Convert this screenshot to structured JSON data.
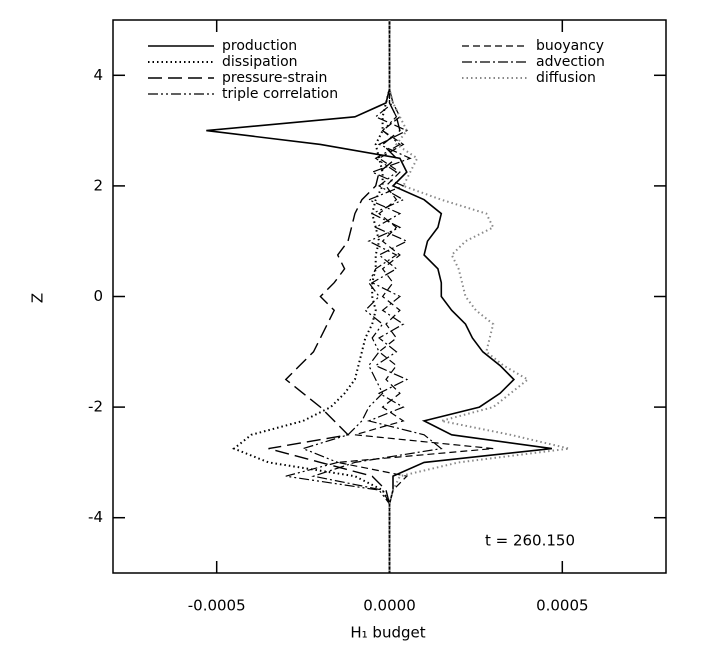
{
  "chart_data": {
    "type": "line",
    "orientation": "vertical-profile",
    "xlabel": "H₁ budget",
    "ylabel": "Z",
    "annotation": "t = 260.150",
    "xlim": [
      -0.0008,
      0.0008
    ],
    "xticks": [
      -0.0005,
      {
        "value": 0,
        "label": "0.0000"
      },
      0.0005
    ],
    "ylim": [
      -5,
      5
    ],
    "yticks": [
      -4,
      -2,
      0,
      2,
      4
    ],
    "y": [
      5,
      4,
      3.75,
      3.5,
      3.25,
      3,
      2.75,
      2.5,
      2.25,
      2,
      1.75,
      1.5,
      1.25,
      1,
      0.75,
      0.5,
      0.25,
      0,
      -0.25,
      -0.5,
      -0.75,
      -1,
      -1.25,
      -1.5,
      -1.75,
      -2,
      -2.25,
      -2.5,
      -2.75,
      -3,
      -3.25,
      -3.5,
      -3.75,
      -4,
      -5
    ],
    "series": [
      {
        "name": "production",
        "color": "#000000",
        "dash": "solid",
        "legend_column": 0,
        "values": [
          0,
          0,
          0,
          -1e-05,
          -0.0001,
          -0.00053,
          -0.0002,
          3e-05,
          5e-05,
          1e-05,
          0.0001,
          0.00015,
          0.00014,
          0.00011,
          0.0001,
          0.00014,
          0.00015,
          0.00015,
          0.00018,
          0.00022,
          0.00024,
          0.00027,
          0.00032,
          0.00036,
          0.00032,
          0.00026,
          0.0001,
          0.00018,
          0.00047,
          0.0001,
          1e-05,
          1e-05,
          0,
          0,
          0
        ]
      },
      {
        "name": "dissipation",
        "color": "#000000",
        "dash": "dotted",
        "legend_column": 0,
        "values": [
          0,
          0,
          0,
          -1e-05,
          -2e-05,
          -2e-05,
          -4e-05,
          -3e-05,
          -2e-05,
          -2e-05,
          -4e-05,
          -5e-05,
          -4e-05,
          -3e-05,
          -4e-05,
          -4e-05,
          -5e-05,
          -5e-05,
          -4e-05,
          -5e-05,
          -7e-05,
          -8e-05,
          -9e-05,
          -0.0001,
          -0.00013,
          -0.00017,
          -0.00025,
          -0.0004,
          -0.00045,
          -0.00035,
          -0.0001,
          -2e-05,
          0,
          0,
          0
        ]
      },
      {
        "name": "pressure-strain",
        "color": "#000000",
        "dash": "long",
        "legend_column": 0,
        "values": [
          0,
          0,
          0,
          0,
          2e-05,
          3e-05,
          -2e-05,
          2e-05,
          -3e-05,
          -4e-05,
          -8e-05,
          -0.0001,
          -0.00011,
          -0.00012,
          -0.00015,
          -0.00013,
          -0.00016,
          -0.0002,
          -0.00016,
          -0.00018,
          -0.0002,
          -0.00022,
          -0.00026,
          -0.0003,
          -0.00025,
          -0.0002,
          -0.00016,
          -0.00012,
          -0.00035,
          -0.0002,
          -5e-05,
          -1e-05,
          0,
          0,
          0
        ]
      },
      {
        "name": "triple correlation",
        "color": "#000000",
        "dash": "dashdotdot",
        "legend_column": 0,
        "values": [
          0,
          0,
          0,
          0,
          2e-05,
          -2e-05,
          3e-05,
          -4e-05,
          2e-05,
          -3e-05,
          4e-05,
          -5e-05,
          3e-05,
          -6e-05,
          2e-05,
          -4e-05,
          -6e-05,
          -3e-05,
          -7e-05,
          -2e-05,
          -5e-05,
          -3e-05,
          -6e-05,
          -4e-05,
          -2e-05,
          -6e-05,
          -8e-05,
          -0.00012,
          -0.00025,
          -0.00015,
          -0.0003,
          -3e-05,
          0,
          0,
          0
        ]
      },
      {
        "name": "buoyancy",
        "color": "#000000",
        "dash": "dashed",
        "legend_column": 1,
        "values": [
          0,
          0,
          0,
          1e-05,
          3e-05,
          -2e-05,
          4e-05,
          -3e-05,
          3e-05,
          -1e-05,
          2e-05,
          -3e-05,
          2e-05,
          -2e-05,
          3e-05,
          -2e-05,
          1e-05,
          -2e-05,
          3e-05,
          -1e-05,
          2e-05,
          -3e-05,
          2e-05,
          -1e-05,
          3e-05,
          -2e-05,
          4e-05,
          -0.0001,
          0.0003,
          -0.00015,
          5e-05,
          1e-05,
          0,
          0,
          0
        ]
      },
      {
        "name": "advection",
        "color": "#000000",
        "dash": "dashdot",
        "legend_column": 1,
        "values": [
          0,
          0,
          0,
          1e-05,
          -4e-05,
          5e-05,
          -3e-05,
          6e-05,
          -5e-05,
          4e-05,
          -6e-05,
          3e-05,
          -4e-05,
          5e-05,
          -3e-05,
          2e-05,
          -5e-05,
          3e-05,
          -2e-05,
          4e-05,
          -3e-05,
          2e-05,
          -4e-05,
          5e-05,
          -3e-05,
          4e-05,
          -6e-05,
          0.0001,
          0.00015,
          -0.0001,
          -0.00022,
          -2e-05,
          0,
          0,
          0
        ]
      },
      {
        "name": "diffusion",
        "color": "#888888",
        "dash": "dotted",
        "legend_column": 1,
        "values": [
          0,
          0,
          0,
          1e-05,
          3e-05,
          5e-05,
          2e-05,
          8e-05,
          6e-05,
          4e-05,
          0.00015,
          0.00028,
          0.0003,
          0.00022,
          0.00018,
          0.0002,
          0.00021,
          0.00022,
          0.00025,
          0.0003,
          0.00029,
          0.00028,
          0.00033,
          0.0004,
          0.00035,
          0.0003,
          0.00015,
          0.00035,
          0.00052,
          0.0002,
          3e-05,
          1e-05,
          0,
          0,
          0
        ]
      }
    ]
  }
}
